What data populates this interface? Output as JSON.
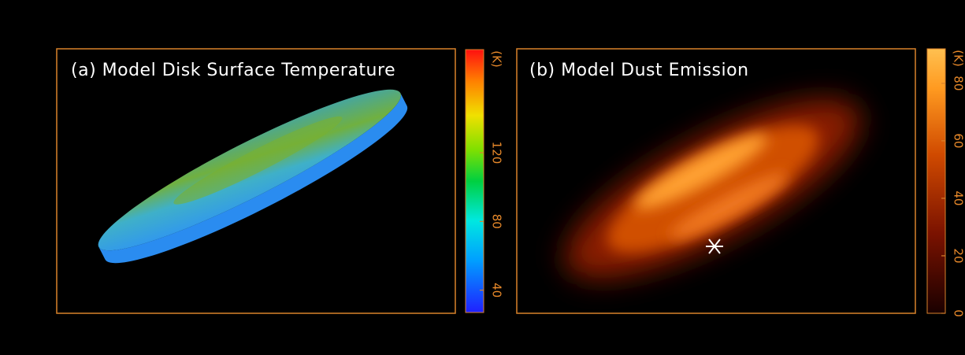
{
  "panels": [
    {
      "title": "(a) Model Disk Surface Temperature",
      "colorbar": {
        "label": "(K)",
        "lim": [
          27,
          180
        ],
        "ticks": [
          40,
          80,
          120
        ]
      }
    },
    {
      "title": "(b) Model Dust Emission",
      "colorbar": {
        "label": "(K)",
        "lim": [
          0,
          92
        ],
        "ticks": [
          0,
          20,
          40,
          60,
          80
        ]
      }
    }
  ]
}
